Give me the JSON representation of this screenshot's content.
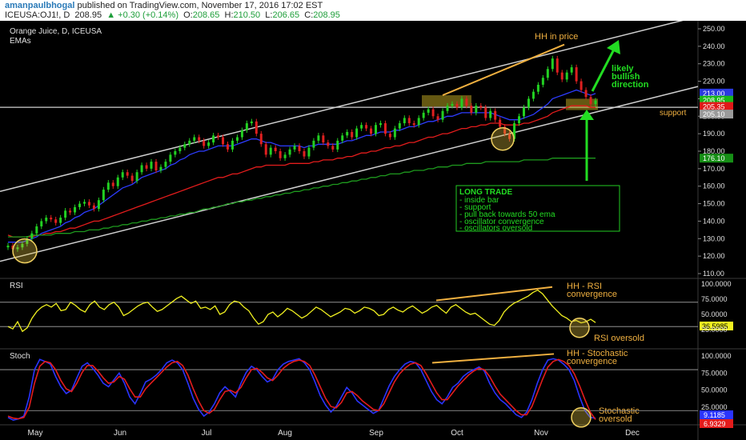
{
  "header": {
    "user": "amanpaulbhogal",
    "published": "published on TradingView.com, November 17, 2016 17:02 EST",
    "symbol": "ICEUSA:OJ1!, D",
    "last": "208.95",
    "change": "▲ +0.30 (+0.14%)",
    "o_label": "O:",
    "o": "208.65",
    "h_label": "H:",
    "h": "210.50",
    "l_label": "L:",
    "l": "206.65",
    "c_label": "C:",
    "c": "208.95"
  },
  "chart_data": [
    {
      "type": "candlestick",
      "title": "Orange Juice, D, ICEUSA",
      "subtitle": "EMAs",
      "ylim": [
        107,
        257
      ],
      "yticks": [
        "110.00",
        "120.00",
        "130.00",
        "140.00",
        "150.00",
        "160.00",
        "170.00",
        "180.00",
        "190.00",
        "200.00",
        "210.00",
        "220.00",
        "230.00",
        "240.00",
        "250.00"
      ],
      "price_tags": [
        {
          "value": "213.00",
          "y": 213,
          "color": "#2a3adf"
        },
        {
          "value": "208.95",
          "y": 208.95,
          "color": "#18b818"
        },
        {
          "value": "205.35",
          "y": 205.35,
          "color": "#e01818"
        },
        {
          "value": "205.10",
          "y": 201,
          "color": "#9a9a9a"
        },
        {
          "value": "176.10",
          "y": 175.8,
          "color": "#168f16"
        }
      ],
      "series": [
        {
          "role": "price",
          "color_up": "#22d022",
          "color_down": "#e02020",
          "close": [
            126,
            124,
            125,
            127,
            130,
            133,
            137,
            140,
            142,
            141,
            139,
            142,
            146,
            145,
            148,
            150,
            151,
            149,
            147,
            152,
            158,
            162,
            160,
            165,
            168,
            166,
            163,
            168,
            172,
            170,
            174,
            169,
            171,
            174,
            178,
            180,
            182,
            184,
            186,
            188,
            186,
            183,
            185,
            189,
            188,
            184,
            181,
            186,
            188,
            192,
            196,
            197,
            190,
            184,
            178,
            182,
            180,
            176,
            178,
            181,
            183,
            180,
            177,
            182,
            186,
            189,
            185,
            183,
            181,
            186,
            189,
            191,
            188,
            193,
            195,
            193,
            190,
            195,
            196,
            190,
            188,
            193,
            196,
            199,
            196,
            195,
            199,
            202,
            204,
            200,
            198,
            203,
            206,
            207,
            205,
            210,
            206,
            202,
            206,
            205,
            199,
            203,
            198,
            194,
            190,
            187,
            196,
            200,
            205,
            210,
            214,
            218,
            222,
            227,
            233,
            225,
            221,
            225,
            228,
            220,
            215,
            211,
            207,
            209
          ]
        },
        {
          "role": "ema",
          "name": "",
          "color": "#2d3cff",
          "values": [
            128,
            128,
            128,
            128,
            129,
            130,
            131,
            133,
            134,
            135,
            136,
            137,
            139,
            140,
            142,
            143,
            145,
            146,
            147,
            149,
            151,
            153,
            155,
            157,
            159,
            160,
            161,
            163,
            165,
            166,
            167,
            168,
            169,
            170,
            172,
            173,
            175,
            176,
            178,
            179,
            180,
            180,
            181,
            182,
            183,
            183,
            183,
            183,
            184,
            185,
            186,
            187,
            187,
            186,
            185,
            185,
            184,
            183,
            183,
            183,
            183,
            183,
            182,
            183,
            183,
            184,
            184,
            184,
            184,
            184,
            185,
            186,
            186,
            187,
            188,
            189,
            189,
            190,
            191,
            191,
            191,
            192,
            192,
            193,
            194,
            194,
            195,
            196,
            197,
            197,
            198,
            199,
            200,
            200,
            201,
            202,
            202,
            202,
            202,
            202,
            202,
            202,
            201,
            200,
            199,
            198,
            198,
            198,
            199,
            200,
            201,
            203,
            205,
            207,
            210,
            211,
            212,
            213,
            214,
            215,
            214,
            213,
            212,
            213
          ]
        },
        {
          "role": "ema",
          "name": "",
          "color": "#e41c1c",
          "values": [
            132,
            131,
            131,
            131,
            131,
            131,
            132,
            132,
            133,
            133,
            134,
            134,
            135,
            136,
            136,
            137,
            138,
            139,
            140,
            140,
            141,
            142,
            143,
            144,
            145,
            146,
            147,
            148,
            149,
            150,
            151,
            152,
            153,
            154,
            155,
            156,
            157,
            158,
            159,
            160,
            161,
            162,
            163,
            164,
            165,
            165,
            166,
            167,
            167,
            168,
            169,
            170,
            171,
            171,
            172,
            172,
            172,
            172,
            172,
            173,
            173,
            173,
            173,
            173,
            174,
            174,
            175,
            175,
            175,
            176,
            176,
            177,
            177,
            178,
            179,
            179,
            180,
            180,
            181,
            182,
            182,
            183,
            183,
            184,
            185,
            185,
            186,
            187,
            188,
            188,
            189,
            190,
            190,
            191,
            192,
            193,
            193,
            194,
            194,
            195,
            195,
            196,
            196,
            196,
            195,
            195,
            195,
            195,
            196,
            196,
            197,
            198,
            199,
            200,
            202,
            203,
            204,
            205,
            206,
            206,
            206,
            206,
            205,
            205
          ]
        },
        {
          "role": "ema",
          "name": "",
          "color": "#1e9a1e",
          "values": [
            131,
            131,
            131,
            131,
            131,
            132,
            132,
            132,
            132,
            132,
            133,
            133,
            133,
            133,
            134,
            134,
            134,
            135,
            135,
            135,
            136,
            136,
            137,
            137,
            138,
            138,
            139,
            139,
            140,
            140,
            141,
            141,
            142,
            142,
            143,
            143,
            144,
            144,
            145,
            145,
            146,
            147,
            147,
            148,
            148,
            149,
            150,
            150,
            151,
            151,
            152,
            152,
            153,
            153,
            154,
            154,
            155,
            155,
            156,
            156,
            157,
            157,
            158,
            158,
            159,
            159,
            160,
            160,
            161,
            161,
            162,
            162,
            163,
            163,
            164,
            164,
            165,
            165,
            166,
            166,
            167,
            167,
            167,
            168,
            168,
            169,
            169,
            169,
            170,
            170,
            171,
            171,
            171,
            172,
            172,
            172,
            173,
            173,
            173,
            173,
            174,
            174,
            174,
            174,
            174,
            174,
            174,
            174,
            175,
            175,
            175,
            175,
            175,
            175,
            176,
            176,
            176,
            176,
            176,
            176,
            176,
            176,
            176,
            176
          ]
        }
      ],
      "annotations": [
        {
          "text": "HH in price",
          "color": "#f0b040"
        },
        {
          "text": "likely bullish direction",
          "lines": [
            "likely",
            "bullish",
            "direction"
          ],
          "color": "#22dd22"
        },
        {
          "text": "support",
          "color": "#f0b040"
        },
        {
          "text": "LONG TRADE box",
          "lines": [
            "LONG TRADE",
            "- inside bar",
            "- support",
            "- pull back towards 50 ema",
            "- oscillator convergence",
            "- oscillators oversold"
          ],
          "color": "#22dd22"
        }
      ]
    },
    {
      "type": "line",
      "title": "RSI",
      "ylim": [
        0,
        105
      ],
      "yticks": [
        "25.0000",
        "50.0000",
        "75.0000",
        "100.0000"
      ],
      "current": "36.5985",
      "series": [
        {
          "name": "",
          "color": "#f0f020",
          "values": [
            30,
            26,
            38,
            22,
            28,
            44,
            55,
            62,
            66,
            62,
            68,
            56,
            58,
            70,
            65,
            58,
            54,
            66,
            72,
            62,
            58,
            66,
            70,
            62,
            48,
            52,
            58,
            64,
            68,
            70,
            62,
            55,
            58,
            64,
            70,
            76,
            80,
            74,
            68,
            72,
            60,
            62,
            58,
            64,
            50,
            54,
            66,
            72,
            70,
            62,
            56,
            44,
            34,
            38,
            50,
            54,
            46,
            52,
            60,
            56,
            50,
            44,
            48,
            55,
            62,
            58,
            52,
            46,
            50,
            54,
            60,
            58,
            52,
            56,
            62,
            60,
            56,
            48,
            50,
            58,
            62,
            57,
            54,
            60,
            64,
            58,
            52,
            56,
            62,
            65,
            58,
            52,
            62,
            66,
            60,
            54,
            50,
            52,
            46,
            40,
            34,
            32,
            40,
            54,
            62,
            68,
            72,
            76,
            80,
            86,
            90,
            84,
            74,
            64,
            56,
            48,
            44,
            38,
            40,
            36,
            38,
            42,
            36.6
          ]
        }
      ],
      "annotations": [
        {
          "text": "HH - RSI convergence",
          "lines": [
            "HH - RSI",
            "convergence"
          ],
          "color": "#f0b040"
        },
        {
          "text": "RSI oversold",
          "color": "#f0b040"
        }
      ]
    },
    {
      "type": "line",
      "title": "Stoch",
      "ylim": [
        0,
        105
      ],
      "yticks": [
        "25.0000",
        "50.0000",
        "75.0000",
        "100.0000"
      ],
      "current_blue": "9.1185",
      "current_red": "6.9329",
      "series": [
        {
          "name": "",
          "color": "#2a34ff",
          "values": [
            10,
            6,
            8,
            12,
            40,
            80,
            95,
            92,
            88,
            70,
            55,
            45,
            50,
            68,
            85,
            90,
            82,
            72,
            60,
            55,
            65,
            75,
            60,
            40,
            30,
            45,
            62,
            66,
            72,
            80,
            90,
            94,
            90,
            80,
            60,
            38,
            22,
            12,
            18,
            30,
            46,
            55,
            48,
            40,
            60,
            76,
            85,
            80,
            70,
            62,
            66,
            80,
            88,
            92,
            94,
            96,
            90,
            80,
            62,
            42,
            28,
            18,
            26,
            40,
            54,
            46,
            34,
            28,
            22,
            16,
            20,
            38,
            56,
            70,
            80,
            88,
            92,
            90,
            80,
            64,
            48,
            36,
            30,
            40,
            54,
            60,
            70,
            76,
            80,
            84,
            78,
            60,
            46,
            36,
            30,
            22,
            14,
            10,
            18,
            36,
            60,
            80,
            94,
            96,
            94,
            88,
            80,
            64,
            40,
            20,
            10,
            9
          ]
        },
        {
          "name": "",
          "color": "#e41c1c",
          "values": [
            12,
            9,
            8,
            10,
            25,
            60,
            85,
            92,
            90,
            80,
            64,
            52,
            48,
            60,
            76,
            86,
            86,
            78,
            68,
            60,
            62,
            70,
            66,
            52,
            40,
            40,
            52,
            60,
            68,
            76,
            84,
            90,
            92,
            86,
            72,
            52,
            34,
            20,
            16,
            22,
            36,
            48,
            50,
            46,
            54,
            68,
            80,
            82,
            76,
            68,
            64,
            72,
            82,
            88,
            92,
            94,
            92,
            86,
            72,
            55,
            38,
            26,
            24,
            32,
            46,
            48,
            42,
            34,
            28,
            22,
            20,
            30,
            46,
            62,
            74,
            82,
            88,
            90,
            86,
            74,
            60,
            46,
            36,
            36,
            46,
            56,
            64,
            72,
            78,
            82,
            80,
            70,
            56,
            44,
            36,
            28,
            20,
            14,
            14,
            26,
            46,
            66,
            84,
            92,
            95,
            92,
            86,
            74,
            56,
            36,
            18,
            7
          ]
        }
      ],
      "annotations": [
        {
          "text": "HH - Stochastic convergence",
          "lines": [
            "HH - Stochastic",
            "convergence"
          ],
          "color": "#f0b040"
        },
        {
          "text": "Stochastic oversold",
          "lines": [
            "Stochastic",
            "oversold"
          ],
          "color": "#f0b040"
        }
      ]
    }
  ],
  "xaxis": {
    "months": [
      "May",
      "Jun",
      "Jul",
      "Aug",
      "Sep",
      "Oct",
      "Nov",
      "Dec"
    ]
  }
}
